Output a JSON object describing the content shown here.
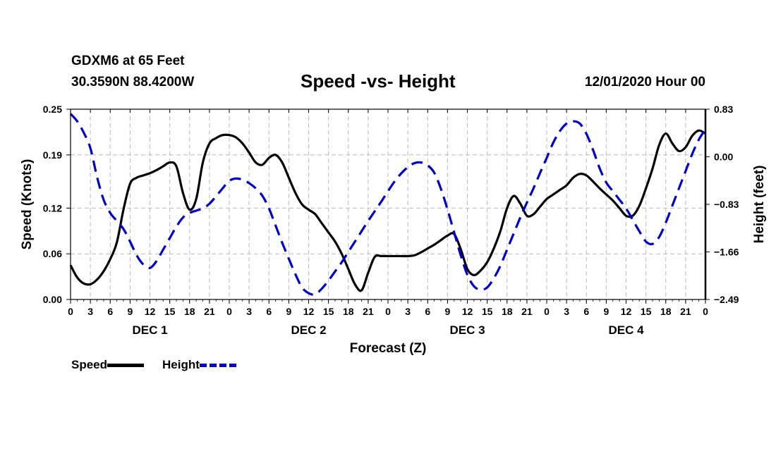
{
  "header": {
    "station": "GDXM6 at 65 Feet",
    "coords": "30.3590N 88.4200W",
    "title": "Speed -vs- Height",
    "datetime": "12/01/2020 Hour 00"
  },
  "legend": {
    "speed_label": "Speed",
    "height_label": "Height"
  },
  "colors": {
    "speed": "#000000",
    "height": "#0000cc",
    "grid": "#bbbbbb"
  },
  "chart_data": {
    "type": "line",
    "title": "Speed -vs- Height",
    "xlabel": "Forecast (Z)",
    "ylabel": "Speed (Knots)",
    "y2label": "Height (feet)",
    "xlim": [
      0,
      96
    ],
    "ylim": [
      0.0,
      0.25
    ],
    "y2lim": [
      -2.49,
      0.83
    ],
    "x_ticks": [
      0,
      3,
      6,
      9,
      12,
      15,
      18,
      21,
      24,
      27,
      30,
      33,
      36,
      39,
      42,
      45,
      48,
      51,
      54,
      57,
      60,
      63,
      66,
      69,
      72,
      75,
      78,
      81,
      84,
      87,
      90,
      93,
      96
    ],
    "x_tick_labels": [
      "0",
      "3",
      "6",
      "9",
      "12",
      "15",
      "18",
      "21",
      "0",
      "3",
      "6",
      "9",
      "12",
      "15",
      "18",
      "21",
      "0",
      "3",
      "6",
      "9",
      "12",
      "15",
      "18",
      "21",
      "0",
      "3",
      "6",
      "9",
      "12",
      "15",
      "18",
      "21",
      "0"
    ],
    "day_labels": [
      {
        "x": 12,
        "label": "DEC 1"
      },
      {
        "x": 36,
        "label": "DEC 2"
      },
      {
        "x": 60,
        "label": "DEC 3"
      },
      {
        "x": 84,
        "label": "DEC 4"
      }
    ],
    "y_ticks": [
      0.0,
      0.06,
      0.12,
      0.19,
      0.25
    ],
    "y_tick_labels": [
      "0.00",
      "0.06",
      "0.12",
      "0.19",
      "0.25"
    ],
    "y2_ticks": [
      -2.49,
      -1.66,
      -0.83,
      0.0,
      0.83
    ],
    "y2_tick_labels": [
      "−2.49",
      "−1.66",
      "−0.83",
      "0.00",
      "0.83"
    ],
    "grid": true,
    "series": [
      {
        "name": "Speed",
        "axis": "left",
        "style": "solid",
        "x": [
          0,
          1,
          2,
          3,
          4,
          5,
          6,
          7,
          8,
          9,
          10,
          11,
          12,
          13,
          14,
          15,
          16,
          17,
          18,
          19,
          20,
          21,
          22,
          23,
          24,
          25,
          26,
          27,
          28,
          29,
          30,
          31,
          32,
          33,
          34,
          35,
          36,
          37,
          38,
          39,
          40,
          41,
          42,
          43,
          44,
          45,
          46,
          47,
          48,
          49,
          50,
          51,
          52,
          53,
          54,
          55,
          56,
          57,
          58,
          59,
          60,
          61,
          62,
          63,
          64,
          65,
          66,
          67,
          68,
          69,
          70,
          71,
          72,
          73,
          74,
          75,
          76,
          77,
          78,
          79,
          80,
          81,
          82,
          83,
          84,
          85,
          86,
          87,
          88,
          89,
          90,
          91,
          92,
          93,
          94,
          95,
          96
        ],
        "values": [
          0.045,
          0.029,
          0.021,
          0.02,
          0.026,
          0.037,
          0.053,
          0.075,
          0.118,
          0.152,
          0.16,
          0.163,
          0.166,
          0.17,
          0.175,
          0.18,
          0.175,
          0.14,
          0.118,
          0.132,
          0.18,
          0.205,
          0.212,
          0.216,
          0.216,
          0.213,
          0.205,
          0.193,
          0.18,
          0.177,
          0.186,
          0.19,
          0.18,
          0.16,
          0.14,
          0.125,
          0.118,
          0.112,
          0.1,
          0.088,
          0.076,
          0.06,
          0.04,
          0.02,
          0.012,
          0.035,
          0.056,
          0.057,
          0.057,
          0.057,
          0.057,
          0.057,
          0.058,
          0.062,
          0.067,
          0.072,
          0.078,
          0.084,
          0.086,
          0.066,
          0.04,
          0.032,
          0.038,
          0.049,
          0.067,
          0.09,
          0.12,
          0.136,
          0.126,
          0.11,
          0.112,
          0.122,
          0.132,
          0.138,
          0.144,
          0.15,
          0.16,
          0.165,
          0.163,
          0.155,
          0.146,
          0.138,
          0.13,
          0.12,
          0.11,
          0.11,
          0.123,
          0.146,
          0.172,
          0.203,
          0.218,
          0.205,
          0.195,
          0.2,
          0.215,
          0.222,
          0.218
        ]
      },
      {
        "name": "Height",
        "axis": "right",
        "style": "dashed",
        "x": [
          0,
          1,
          2,
          3,
          4,
          5,
          6,
          7,
          8,
          9,
          10,
          11,
          12,
          13,
          14,
          15,
          16,
          17,
          18,
          19,
          20,
          21,
          22,
          23,
          24,
          25,
          26,
          27,
          28,
          29,
          30,
          31,
          32,
          33,
          34,
          35,
          36,
          37,
          38,
          39,
          40,
          41,
          42,
          43,
          44,
          45,
          46,
          47,
          48,
          49,
          50,
          51,
          52,
          53,
          54,
          55,
          56,
          57,
          58,
          59,
          60,
          61,
          62,
          63,
          64,
          65,
          66,
          67,
          68,
          69,
          70,
          71,
          72,
          73,
          74,
          75,
          76,
          77,
          78,
          79,
          80,
          81,
          82,
          83,
          84,
          85,
          86,
          87,
          88,
          89,
          90,
          91,
          92,
          93,
          94,
          95,
          96
        ],
        "values": [
          0.75,
          0.62,
          0.42,
          0.15,
          -0.35,
          -0.75,
          -0.98,
          -1.12,
          -1.26,
          -1.48,
          -1.72,
          -1.88,
          -1.94,
          -1.82,
          -1.62,
          -1.42,
          -1.22,
          -1.06,
          -0.98,
          -0.94,
          -0.9,
          -0.82,
          -0.69,
          -0.55,
          -0.42,
          -0.38,
          -0.4,
          -0.46,
          -0.55,
          -0.68,
          -0.9,
          -1.2,
          -1.5,
          -1.78,
          -2.05,
          -2.28,
          -2.38,
          -2.4,
          -2.3,
          -2.16,
          -2.0,
          -1.84,
          -1.66,
          -1.48,
          -1.3,
          -1.12,
          -0.95,
          -0.78,
          -0.6,
          -0.43,
          -0.29,
          -0.18,
          -0.11,
          -0.1,
          -0.15,
          -0.28,
          -0.56,
          -0.92,
          -1.32,
          -1.72,
          -2.06,
          -2.26,
          -2.32,
          -2.28,
          -2.12,
          -1.9,
          -1.62,
          -1.34,
          -1.06,
          -0.8,
          -0.55,
          -0.28,
          -0.02,
          0.25,
          0.45,
          0.58,
          0.62,
          0.58,
          0.4,
          0.12,
          -0.2,
          -0.45,
          -0.6,
          -0.75,
          -0.9,
          -1.1,
          -1.3,
          -1.48,
          -1.52,
          -1.4,
          -1.15,
          -0.85,
          -0.55,
          -0.25,
          0.05,
          0.3,
          0.48
        ]
      }
    ]
  }
}
